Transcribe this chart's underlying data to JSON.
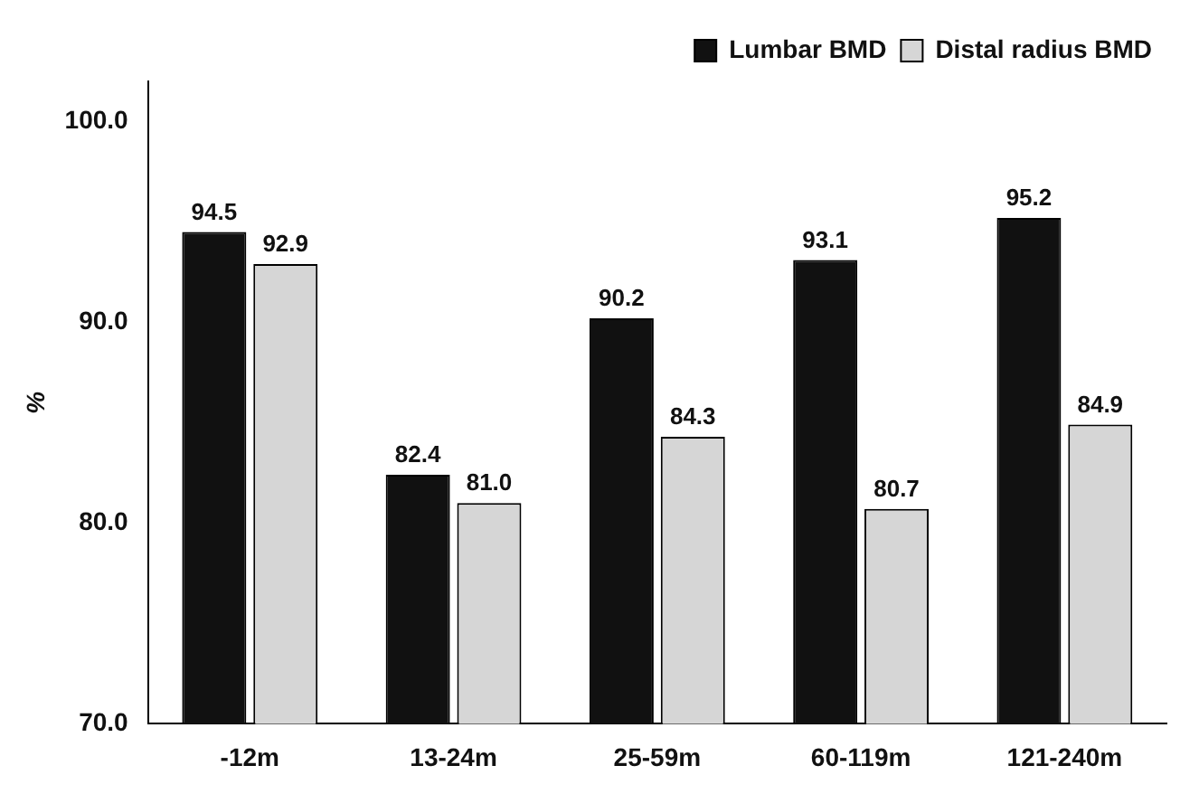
{
  "chart_data": {
    "type": "bar",
    "ylabel": "%",
    "categories": [
      "-12m",
      "13-24m",
      "25-59m",
      "60-119m",
      "121-240m"
    ],
    "series": [
      {
        "name": "Lumbar BMD",
        "color": "#111111",
        "values": [
          94.5,
          82.4,
          90.2,
          93.1,
          95.2
        ],
        "value_labels": [
          "94.5",
          "82.4",
          "90.2",
          "93.1",
          "95.2"
        ]
      },
      {
        "name": "Distal radius BMD",
        "color": "#d6d6d6",
        "values": [
          92.9,
          81.0,
          84.3,
          80.7,
          84.9
        ],
        "value_labels": [
          "92.9",
          "81.0",
          "84.3",
          "80.7",
          "84.9"
        ]
      }
    ],
    "ylim": [
      70,
      102
    ],
    "yticks": [
      {
        "value": 70,
        "label": "70.0"
      },
      {
        "value": 80,
        "label": "80.0"
      },
      {
        "value": 90,
        "label": "90.0"
      },
      {
        "value": 100,
        "label": "100.0"
      }
    ],
    "grid": false,
    "legend": "top right"
  }
}
